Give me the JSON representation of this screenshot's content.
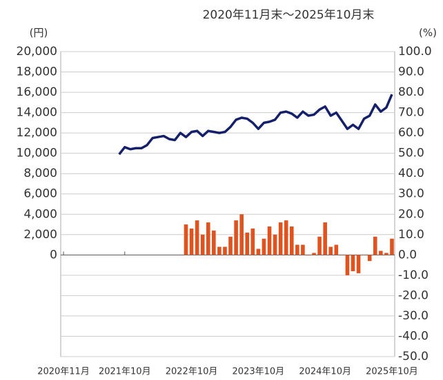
{
  "chart_data": {
    "type": "line-bar",
    "title": "2020年11月末～2025年10月末",
    "y_label": "(円)",
    "y2_label": "(%)",
    "categories": [
      "2020年11月",
      null,
      null,
      null,
      null,
      null,
      null,
      null,
      null,
      null,
      null,
      "2021年10月",
      null,
      null,
      null,
      null,
      null,
      null,
      null,
      null,
      null,
      null,
      null,
      "2022年10月",
      null,
      null,
      null,
      null,
      null,
      null,
      null,
      null,
      null,
      null,
      null,
      "2023年10月",
      null,
      null,
      null,
      null,
      null,
      null,
      null,
      null,
      null,
      null,
      null,
      "2024年10月",
      null,
      null,
      null,
      null,
      null,
      null,
      null,
      null,
      null,
      null,
      null,
      "2025年10月"
    ],
    "series": [
      {
        "kind": "line",
        "color": "#15206a",
        "axis": "y",
        "values": [
          null,
          null,
          null,
          null,
          null,
          null,
          null,
          null,
          null,
          null,
          9900,
          10600,
          10400,
          10500,
          10500,
          10800,
          11500,
          11600,
          11700,
          11400,
          11300,
          12000,
          11600,
          12100,
          12200,
          11700,
          12200,
          12100,
          12000,
          12100,
          12600,
          13300,
          13500,
          13400,
          13000,
          12400,
          13000,
          13100,
          13300,
          14000,
          14100,
          13900,
          13500,
          14100,
          13700,
          13800,
          14300,
          14600,
          13700,
          14000,
          13200,
          12400,
          12800,
          12400,
          13400,
          13700,
          14800,
          14100,
          14500,
          15800
        ]
      },
      {
        "kind": "bar",
        "color": "#e0531f",
        "axis": "y2",
        "values": [
          null,
          null,
          null,
          null,
          null,
          null,
          null,
          null,
          null,
          null,
          null,
          null,
          null,
          null,
          null,
          null,
          null,
          null,
          null,
          null,
          null,
          null,
          15,
          13,
          17,
          10,
          16,
          12,
          4,
          4,
          9,
          17,
          20,
          11,
          13,
          3,
          8,
          14,
          10,
          16,
          17,
          14,
          5,
          5,
          0,
          1,
          9,
          16,
          4,
          5,
          0,
          -10,
          -8,
          -9,
          0,
          -3,
          9,
          2,
          1,
          8
        ]
      }
    ],
    "ylim": [
      -10000,
      20000
    ],
    "yticks": [
      0,
      {
        "value": 2000,
        "label": "2,000"
      },
      {
        "value": 4000,
        "label": "4,000"
      },
      {
        "value": 6000,
        "label": "6,000"
      },
      {
        "value": 8000,
        "label": "8,000"
      },
      {
        "value": 10000,
        "label": "10,000"
      },
      {
        "value": 12000,
        "label": "12,000"
      },
      {
        "value": 14000,
        "label": "14,000"
      },
      {
        "value": 16000,
        "label": "16,000"
      },
      {
        "value": 18000,
        "label": "18,000"
      },
      {
        "value": 20000,
        "label": "20,000"
      }
    ],
    "y2lim": [
      -50,
      100
    ],
    "y2ticks": [
      {
        "value": -50,
        "label": "-50.0"
      },
      {
        "value": -40,
        "label": "-40.0"
      },
      {
        "value": -30,
        "label": "-30.0"
      },
      {
        "value": -20,
        "label": "-20.0"
      },
      {
        "value": -10,
        "label": "-10.0"
      },
      {
        "value": 0,
        "label": "0.0"
      },
      {
        "value": 10,
        "label": "10.0"
      },
      {
        "value": 20,
        "label": "20.0"
      },
      {
        "value": 30,
        "label": "30.0"
      },
      {
        "value": 40,
        "label": "40.0"
      },
      {
        "value": 50,
        "label": "50.0"
      },
      {
        "value": 60,
        "label": "60.0"
      },
      {
        "value": 70,
        "label": "70.0"
      },
      {
        "value": 80,
        "label": "80.0"
      },
      {
        "value": 90,
        "label": "90.0"
      },
      {
        "value": 100,
        "label": "100.0"
      }
    ],
    "grid": true
  }
}
